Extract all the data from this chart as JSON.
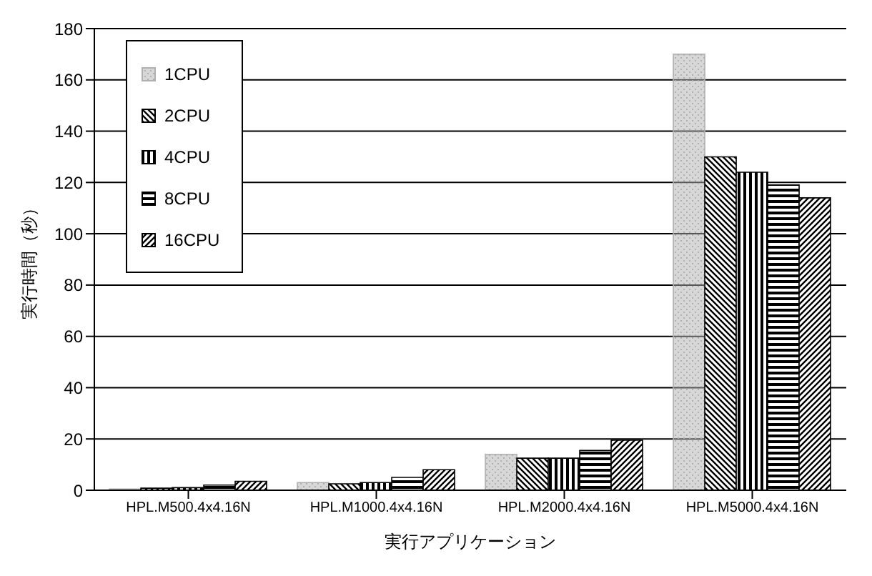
{
  "chart_data": {
    "type": "bar",
    "xlabel": "実行アプリケーション",
    "ylabel": "実行時間（秒）",
    "categories": [
      "HPL.M500.4x4.16N",
      "HPL.M1000.4x4.16N",
      "HPL.M2000.4x4.16N",
      "HPL.M5000.4x4.16N"
    ],
    "series": [
      {
        "name": "1CPU",
        "color": "#b0b0b0",
        "values": [
          0.5,
          3,
          14,
          170
        ]
      },
      {
        "name": "2CPU",
        "color": "#000000",
        "values": [
          0.8,
          2.5,
          12.5,
          130
        ]
      },
      {
        "name": "4CPU",
        "color": "#000000",
        "values": [
          1,
          3,
          12.5,
          124
        ]
      },
      {
        "name": "8CPU",
        "color": "#000000",
        "values": [
          2,
          5,
          15.5,
          119
        ]
      },
      {
        "name": "16CPU",
        "color": "#000000",
        "values": [
          3.5,
          8,
          19.5,
          114
        ]
      }
    ],
    "ylim": [
      0,
      180
    ],
    "yticks": [
      0,
      20,
      40,
      60,
      80,
      100,
      120,
      140,
      160,
      180
    ],
    "grid": "y",
    "legend": "top left"
  }
}
